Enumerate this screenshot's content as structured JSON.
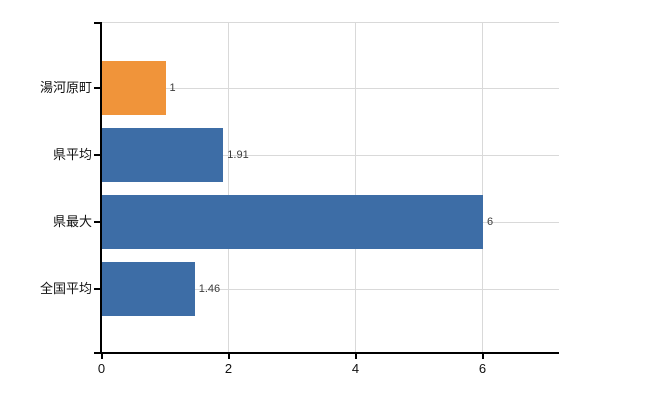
{
  "chart_data": {
    "type": "bar",
    "orientation": "horizontal",
    "title": "",
    "categories": [
      "湯河原町",
      "県平均",
      "県最大",
      "全国平均"
    ],
    "values": [
      1,
      1.91,
      6,
      1.46
    ],
    "value_labels": [
      "1",
      "1.91",
      "6",
      "1.46"
    ],
    "bar_colors": [
      "#f0943a",
      "#3d6da6",
      "#3d6da6",
      "#3d6da6"
    ],
    "x_tick_labels": [
      "0",
      "2",
      "4",
      "6"
    ],
    "x_tick_values": [
      0,
      2,
      4,
      6
    ],
    "xlim": [
      0,
      7.2
    ],
    "grid": true,
    "legend_position": "none",
    "colors": {
      "highlight_bar": "#f0943a",
      "default_bar": "#3d6da6",
      "gridline": "#d9d9d9",
      "axis": "#000000",
      "value_label_text": "#3c3c3c",
      "tick_label_text": "#111111",
      "background": "#ffffff"
    }
  }
}
